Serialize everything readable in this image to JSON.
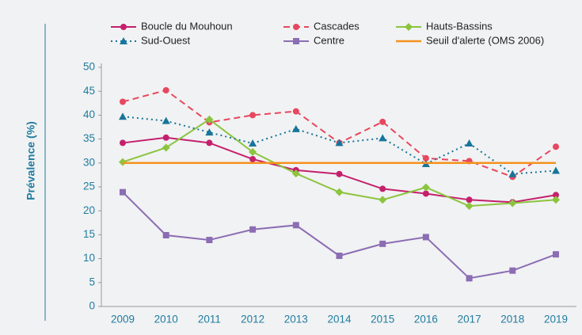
{
  "chart_data": {
    "type": "line",
    "y_label": "Prévalence (%)",
    "categories": [
      "2009",
      "2010",
      "2011",
      "2012",
      "2013",
      "2014",
      "2015",
      "2016",
      "2017",
      "2018",
      "2019"
    ],
    "series": [
      {
        "name": "Boucle du Mouhoun",
        "color": "#c4206c",
        "dash": "solid",
        "marker": "circle",
        "values": [
          34.2,
          35.3,
          34.2,
          30.8,
          28.5,
          27.7,
          24.6,
          23.6,
          22.3,
          21.8,
          23.3
        ]
      },
      {
        "name": "Cascades",
        "color": "#e8475f",
        "dash": "dashed",
        "marker": "circle",
        "values": [
          42.8,
          45.2,
          38.5,
          40.0,
          40.8,
          34.2,
          38.6,
          31.0,
          30.4,
          27.1,
          33.4
        ]
      },
      {
        "name": "Hauts-Bassins",
        "color": "#8cc43f",
        "dash": "solid",
        "marker": "diamond",
        "values": [
          30.2,
          33.2,
          39.1,
          32.3,
          27.8,
          23.9,
          22.3,
          24.9,
          21.0,
          21.6,
          22.3
        ]
      },
      {
        "name": "Sud-Ouest",
        "color": "#17759a",
        "dash": "dotted",
        "marker": "triangle",
        "values": [
          39.7,
          38.8,
          36.4,
          34.1,
          37.1,
          34.2,
          35.2,
          29.8,
          34.1,
          27.7,
          28.4
        ]
      },
      {
        "name": "Centre",
        "color": "#8b6db3",
        "dash": "solid",
        "marker": "square",
        "values": [
          23.9,
          14.9,
          13.9,
          16.1,
          17.0,
          10.6,
          13.1,
          14.5,
          5.9,
          7.5,
          10.9
        ]
      },
      {
        "name": "Seuil d'alerte (OMS 2006)",
        "color": "#f5921e",
        "dash": "solid",
        "marker": "none",
        "values": [
          30,
          30,
          30,
          30,
          30,
          30,
          30,
          30,
          30,
          30,
          30
        ]
      }
    ],
    "ylim": [
      0,
      50
    ],
    "yticks": [
      0,
      5,
      10,
      15,
      20,
      25,
      30,
      35,
      40,
      45,
      50
    ],
    "grid": false,
    "legend": "top"
  }
}
